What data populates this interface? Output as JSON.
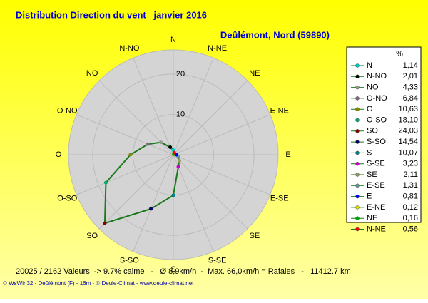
{
  "chart_data": {
    "type": "polar",
    "title": "Distribution Direction du vent   janvier 2016",
    "subtitle": "Deûlémont, Nord (59890)",
    "rotation": "counterclockwise",
    "categories": [
      "N",
      "N-NO",
      "NO",
      "O-NO",
      "O",
      "O-SO",
      "SO",
      "S-SO",
      "S",
      "S-SE",
      "SE",
      "E-SE",
      "E",
      "E-NE",
      "NE",
      "N-NE"
    ],
    "series": [
      {
        "name": "%",
        "color": "#1a7a1a",
        "values": [
          1.14,
          2.01,
          4.33,
          6.84,
          10.63,
          18.1,
          24.03,
          14.54,
          10.07,
          3.23,
          2.11,
          1.31,
          0.81,
          0.12,
          0.16,
          0.56
        ],
        "value_labels": [
          "1,14",
          "2,01",
          "4,33",
          "6,84",
          "10,63",
          "18,10",
          "24,03",
          "14,54",
          "10,07",
          "3,23",
          "2,11",
          "1,31",
          "0,81",
          "0,12",
          "0,16",
          "0,56"
        ],
        "point_colors": [
          "#00cccc",
          "#000000",
          "#999999",
          "#886688",
          "#888800",
          "#00aa66",
          "#880000",
          "#000066",
          "#008080",
          "#cc00cc",
          "#999966",
          "#669999",
          "#0000ff",
          "#dddd00",
          "#00aa00",
          "#ff0000"
        ]
      }
    ],
    "rlim": [
      0,
      26
    ],
    "rticks": [
      10,
      20
    ],
    "legend": "right",
    "footer": "20025 / 2162 Valeurs  -> 9.7% calme   -   Ø 8,9km/h  -  Max. 66,0km/h = Rafales   -   11412.7 km",
    "credit": "© WsWin32 - Deûlémont (F) - 16m - © Deule-Climat - www.deule-climat.net"
  }
}
